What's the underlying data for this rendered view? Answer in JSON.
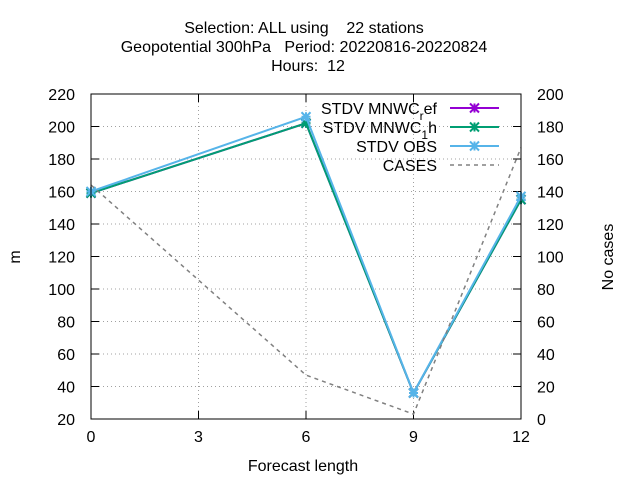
{
  "chart_data": {
    "type": "line",
    "title_lines": [
      "Selection: ALL using    22 stations",
      "Geopotential 300hPa   Period: 20220816-20220824",
      "Hours:  12"
    ],
    "xlabel": "Forecast length",
    "ylabel": "m",
    "y2label": "No cases",
    "x": [
      0,
      6,
      9,
      12
    ],
    "xticks": [
      0,
      3,
      6,
      9,
      12
    ],
    "xlim": [
      0,
      12
    ],
    "ylim": [
      20,
      220
    ],
    "yticks": [
      20,
      40,
      60,
      80,
      100,
      120,
      140,
      160,
      180,
      200,
      220
    ],
    "y2lim": [
      0,
      200
    ],
    "y2ticks": [
      0,
      20,
      40,
      60,
      80,
      100,
      120,
      140,
      160,
      180,
      200
    ],
    "grid": true,
    "legend_position": "top-right",
    "series": [
      {
        "name": "STDV MNWC_ref",
        "legend_main": "STDV MNWC",
        "legend_sub": "r",
        "legend_tail": "ef",
        "axis": "y",
        "color": "#9400d3",
        "style": "solid",
        "marker": "x",
        "values": [
          159,
          202,
          36,
          155
        ]
      },
      {
        "name": "STDV MNWC_1h",
        "legend_main": "STDV MNWC",
        "legend_sub": "1",
        "legend_tail": "h",
        "axis": "y",
        "color": "#009e73",
        "style": "solid",
        "marker": "x",
        "values": [
          159,
          202,
          36,
          155
        ]
      },
      {
        "name": "STDV OBS",
        "legend_main": "STDV OBS",
        "legend_sub": "",
        "legend_tail": "",
        "axis": "y",
        "color": "#56b4e9",
        "style": "solid",
        "marker": "x",
        "values": [
          160,
          206,
          36,
          157
        ]
      },
      {
        "name": "CASES",
        "legend_main": "CASES",
        "legend_sub": "",
        "legend_tail": "",
        "axis": "y2",
        "color": "#808080",
        "style": "dashed",
        "marker": "none",
        "values": [
          144,
          27,
          3,
          167
        ]
      }
    ]
  }
}
